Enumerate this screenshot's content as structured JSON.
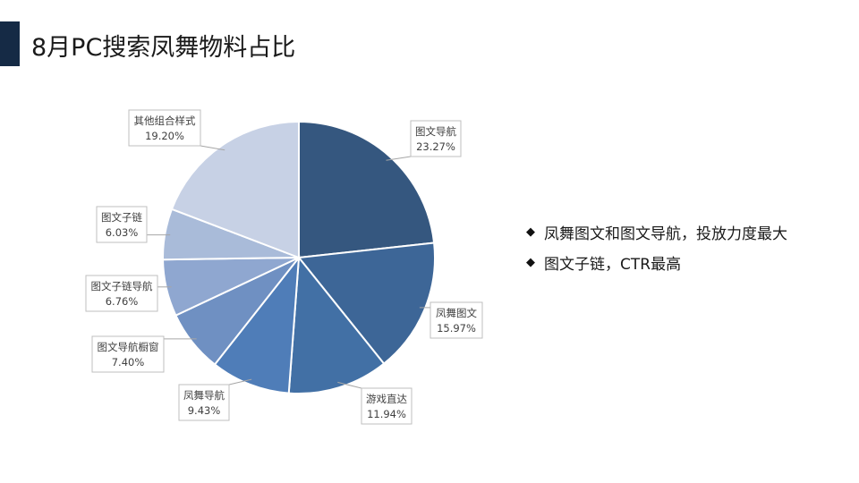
{
  "title": "8月PC搜索凤舞物料占比",
  "bullets": [
    "凤舞图文和图文导航，投放力度最大",
    "图文子链，CTR最高"
  ],
  "bullet_icon": "diamond-icon",
  "colors": {
    "title_bar": "#152a45",
    "slices": [
      "#35577f",
      "#3d6697",
      "#4270a5",
      "#4f7db8",
      "#6f90c2",
      "#8fa7d0",
      "#a9bbd9",
      "#c7d1e5"
    ]
  },
  "chart_data": {
    "type": "pie",
    "title": "",
    "slices": [
      {
        "label": "图文导航",
        "value": 23.27,
        "display": "23.27%"
      },
      {
        "label": "凤舞图文",
        "value": 15.97,
        "display": "15.97%"
      },
      {
        "label": "游戏直达",
        "value": 11.94,
        "display": "11.94%"
      },
      {
        "label": "凤舞导航",
        "value": 9.43,
        "display": "9.43%"
      },
      {
        "label": "图文导航橱窗",
        "value": 7.4,
        "display": "7.40%"
      },
      {
        "label": "图文子链导航",
        "value": 6.76,
        "display": "6.76%"
      },
      {
        "label": "图文子链",
        "value": 6.03,
        "display": "6.03%"
      },
      {
        "label": "其他组合样式",
        "value": 19.2,
        "display": "19.20%"
      }
    ],
    "start_angle": "12 o'clock",
    "direction": "clockwise",
    "labels": "callout boxes with leader lines"
  }
}
